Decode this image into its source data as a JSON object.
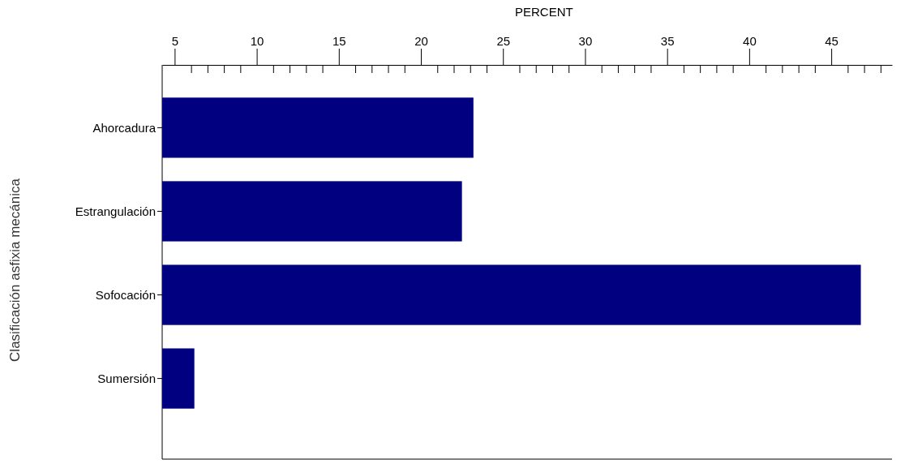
{
  "chart_data": {
    "type": "bar",
    "orientation": "horizontal",
    "xlabel": "PERCENT",
    "ylabel": "Clasificación asfixia mecánica",
    "categories": [
      "Ahorcadura",
      "Estrangulación",
      "Sofocación",
      "Sumersión"
    ],
    "values": [
      23.2,
      22.5,
      46.8,
      6.2
    ],
    "color": "#000080",
    "xlim": [
      4.24,
      48.7
    ],
    "xticks": [
      5,
      {
        "value": 6,
        "label": null
      },
      {
        "value": 7,
        "label": null
      },
      {
        "value": 8,
        "label": null
      },
      {
        "value": 9,
        "label": null
      },
      10,
      {
        "value": 11,
        "label": null
      },
      {
        "value": 12,
        "label": null
      },
      {
        "value": 13,
        "label": null
      },
      {
        "value": 14,
        "label": null
      },
      15,
      {
        "value": 16,
        "label": null
      },
      {
        "value": 17,
        "label": null
      },
      {
        "value": 18,
        "label": null
      },
      {
        "value": 19,
        "label": null
      },
      20,
      {
        "value": 21,
        "label": null
      },
      {
        "value": 22,
        "label": null
      },
      {
        "value": 23,
        "label": null
      },
      {
        "value": 24,
        "label": null
      },
      25,
      {
        "value": 26,
        "label": null
      },
      {
        "value": 27,
        "label": null
      },
      {
        "value": 28,
        "label": null
      },
      {
        "value": 29,
        "label": null
      },
      30,
      {
        "value": 31,
        "label": null
      },
      {
        "value": 32,
        "label": null
      },
      {
        "value": 33,
        "label": null
      },
      {
        "value": 34,
        "label": null
      },
      35,
      {
        "value": 36,
        "label": null
      },
      {
        "value": 37,
        "label": null
      },
      {
        "value": 38,
        "label": null
      },
      {
        "value": 39,
        "label": null
      },
      40,
      {
        "value": 41,
        "label": null
      },
      {
        "value": 42,
        "label": null
      },
      {
        "value": 43,
        "label": null
      },
      {
        "value": 44,
        "label": null
      },
      45,
      {
        "value": 46,
        "label": null
      },
      {
        "value": 47,
        "label": null
      },
      {
        "value": 48,
        "label": null
      }
    ],
    "grid": false
  }
}
